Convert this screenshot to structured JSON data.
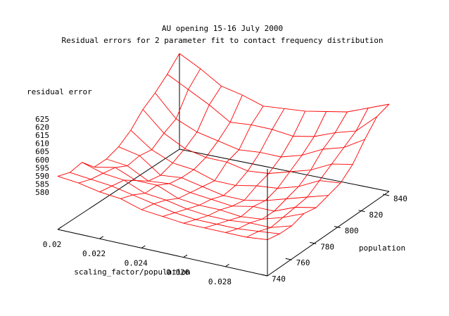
{
  "chart_data": {
    "type": "surface",
    "title": "AU opening 15-16 July 2000",
    "subtitle": "Residual errors for 2 parameter fit to contact frequency distribution",
    "zlabel": "residual error",
    "xlabel": "scaling_factor/population",
    "ylabel": "population",
    "x_ticks": [
      "0.02",
      "0.022",
      "0.024",
      "0.026",
      "0.028"
    ],
    "y_ticks": [
      "740",
      "760",
      "780",
      "800",
      "820",
      "840"
    ],
    "z_ticks": [
      "580",
      "585",
      "590",
      "595",
      "600",
      "605",
      "610",
      "615",
      "620",
      "625"
    ],
    "xlim": [
      0.02,
      0.03
    ],
    "ylim": [
      740,
      840
    ],
    "zlim": [
      580,
      625
    ],
    "grid": false,
    "mesh_color": "#ff0000",
    "x": [
      0.02,
      0.021,
      0.022,
      0.023,
      0.024,
      0.025,
      0.026,
      0.027,
      0.028,
      0.029,
      0.03
    ],
    "y": [
      740,
      750,
      760,
      770,
      780,
      790,
      800,
      810,
      820,
      830,
      840
    ],
    "z": [
      [
        605,
        604,
        602,
        601,
        598,
        597,
        596,
        596,
        596,
        596,
        597
      ],
      [
        603,
        602,
        601,
        599,
        597,
        595,
        594,
        594,
        594,
        595,
        596
      ],
      [
        604,
        601,
        600,
        596,
        595,
        593,
        592,
        592,
        593,
        593,
        596
      ],
      [
        598,
        600,
        596,
        596,
        592,
        591,
        591,
        590,
        591,
        594,
        598
      ],
      [
        598,
        597,
        592,
        593,
        591,
        590,
        589,
        591,
        591,
        595,
        597
      ],
      [
        600,
        598,
        591,
        592,
        590,
        588,
        588,
        590,
        593,
        596,
        599
      ],
      [
        604,
        597,
        593,
        592,
        589,
        589,
        591,
        592,
        595,
        600,
        601
      ],
      [
        610,
        601,
        596,
        594,
        594,
        592,
        593,
        596,
        599,
        604,
        606
      ],
      [
        614,
        604,
        600,
        598,
        596,
        597,
        597,
        600,
        605,
        608,
        614
      ],
      [
        619,
        614,
        609,
        603,
        604,
        604,
        603,
        605,
        609,
        612,
        621
      ],
      [
        625,
        620,
        614,
        612,
        609,
        610,
        611,
        613,
        615,
        619,
        623
      ]
    ]
  }
}
